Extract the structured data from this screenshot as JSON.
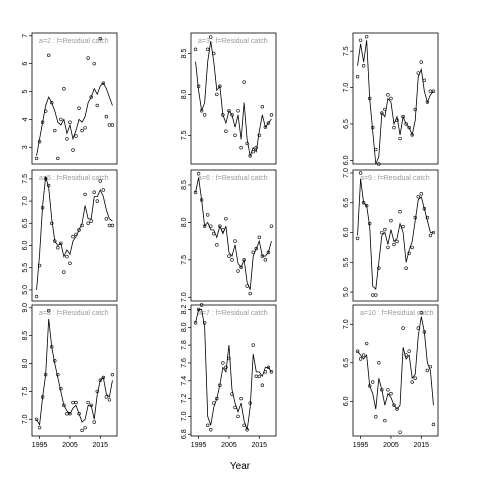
{
  "chart_data": {
    "type": "scatter",
    "x_label": "Year",
    "x": [
      1994,
      1995,
      1996,
      1997,
      1998,
      1999,
      2000,
      2001,
      2002,
      2003,
      2004,
      2005,
      2006,
      2007,
      2008,
      2009,
      2010,
      2011,
      2012,
      2013,
      2014,
      2015,
      2016,
      2017,
      2018,
      2019
    ],
    "xlim": [
      1992.5,
      2020.5
    ],
    "xticks": [
      1995,
      2005,
      2015
    ],
    "point_color": "#000000",
    "line_color": "#000000",
    "title_color": "#999999",
    "panels": [
      {
        "title": "a=2  :  f=Residual catch",
        "ylim": [
          2.4,
          7.1
        ],
        "yticks": [
          3,
          4,
          5,
          6,
          7
        ],
        "values": [
          2.6,
          3.2,
          3.9,
          4.3,
          6.3,
          4.6,
          3.6,
          2.6,
          4.0,
          5.1,
          3.3,
          3.9,
          2.9,
          3.4,
          4.4,
          3.6,
          3.7,
          6.2,
          4.8,
          6.0,
          4.5,
          6.9,
          5.3,
          4.1,
          3.8,
          3.8
        ],
        "fit": [
          2.7,
          3.3,
          3.9,
          4.5,
          4.8,
          4.6,
          4.3,
          3.9,
          3.8,
          4.0,
          3.5,
          3.8,
          3.3,
          3.6,
          4.0,
          3.9,
          4.1,
          4.6,
          4.8,
          5.1,
          4.9,
          5.2,
          5.3,
          5.1,
          4.8,
          4.5
        ]
      },
      {
        "title": "a=3  :  f=Residual catch",
        "ylim": [
          7.15,
          8.75
        ],
        "yticks": [
          7.5,
          {
            "value": 8,
            "label": "8.0"
          },
          8.5
        ],
        "values": [
          8.55,
          8.1,
          7.8,
          7.75,
          8.55,
          8.7,
          8.5,
          8.0,
          8.1,
          7.75,
          7.55,
          7.8,
          7.75,
          7.5,
          7.8,
          7.35,
          8.15,
          7.4,
          7.25,
          7.3,
          7.35,
          7.5,
          7.85,
          7.6,
          7.65,
          7.75
        ],
        "fit": [
          8.4,
          8.05,
          7.8,
          7.9,
          8.4,
          8.65,
          8.4,
          8.05,
          8.1,
          7.75,
          7.65,
          7.8,
          7.75,
          7.6,
          7.75,
          7.45,
          7.9,
          7.45,
          7.25,
          7.35,
          7.3,
          7.55,
          7.75,
          7.6,
          7.65,
          7.7
        ]
      },
      {
        "ylim": [
          5.95,
          7.75
        ],
        "yticks": [
          {
            "value": 6,
            "label": "6.0"
          },
          6.5,
          {
            "value": 7,
            "label": "7.0"
          },
          7.5
        ],
        "values": [
          7.15,
          7.65,
          7.3,
          7.7,
          6.85,
          6.45,
          6.15,
          5.95,
          6.65,
          6.7,
          6.9,
          6.85,
          6.45,
          6.55,
          6.3,
          6.6,
          6.5,
          6.45,
          6.35,
          6.7,
          7.2,
          7.35,
          7.1,
          6.8,
          6.95,
          6.95
        ],
        "fit": [
          7.3,
          7.6,
          7.35,
          7.65,
          6.85,
          6.4,
          5.95,
          6.05,
          6.65,
          6.6,
          6.85,
          6.8,
          6.5,
          6.6,
          6.35,
          6.6,
          6.5,
          6.45,
          6.35,
          6.55,
          7.15,
          7.25,
          6.95,
          6.8,
          6.9,
          6.95
        ]
      },
      {
        "title": "a=5  :  f=Residual catch",
        "ylim": [
          4.75,
          7.7
        ],
        "yticks": [
          {
            "value": 5,
            "label": "5.0"
          },
          5.5,
          {
            "value": 6,
            "label": "6.0"
          },
          6.5,
          {
            "value": 7,
            "label": "7.0"
          },
          7.5
        ],
        "values": [
          4.85,
          5.55,
          6.85,
          7.5,
          7.35,
          6.5,
          6.1,
          5.95,
          6.05,
          5.4,
          5.75,
          5.6,
          6.2,
          6.25,
          6.35,
          6.45,
          7.15,
          6.5,
          6.55,
          7.2,
          7.0,
          7.45,
          7.25,
          6.6,
          6.45,
          6.45
        ],
        "fit": [
          5.0,
          5.8,
          6.9,
          7.55,
          7.3,
          6.6,
          6.1,
          6.0,
          6.05,
          5.75,
          5.9,
          5.8,
          6.1,
          6.2,
          6.35,
          6.5,
          6.9,
          6.6,
          6.6,
          7.1,
          7.1,
          7.25,
          7.1,
          6.8,
          6.6,
          6.55
        ]
      },
      {
        "title": "a=6  :  f=Residual catch",
        "ylim": [
          6.95,
          8.7
        ],
        "yticks": [
          {
            "value": 7,
            "label": "7.0"
          },
          7.5,
          {
            "value": 8,
            "label": "8.0"
          },
          8.5
        ],
        "values": [
          8.4,
          8.65,
          8.3,
          7.95,
          8.1,
          7.95,
          7.85,
          7.7,
          7.95,
          7.9,
          8.05,
          7.55,
          7.5,
          7.75,
          7.35,
          7.4,
          7.5,
          7.15,
          7.05,
          7.6,
          7.65,
          7.8,
          7.55,
          7.5,
          7.6,
          7.95
        ],
        "fit": [
          8.4,
          8.6,
          8.3,
          7.95,
          8.0,
          7.9,
          7.9,
          7.8,
          7.95,
          7.85,
          7.95,
          7.6,
          7.55,
          7.7,
          7.45,
          7.4,
          7.5,
          7.2,
          7.1,
          7.55,
          7.65,
          7.75,
          7.55,
          7.55,
          7.6,
          7.75
        ]
      },
      {
        "title": "a=9  :  f=Residual catch",
        "ylim": [
          4.85,
          7.05
        ],
        "yticks": [
          {
            "value": 5,
            "label": "5.0"
          },
          5.5,
          {
            "value": 6,
            "label": "6.0"
          },
          6.5,
          {
            "value": 7,
            "label": "7.0"
          }
        ],
        "values": [
          5.9,
          7.0,
          6.5,
          6.45,
          6.15,
          4.95,
          4.95,
          5.4,
          6.0,
          6.05,
          5.75,
          6.2,
          5.8,
          5.85,
          6.35,
          6.1,
          5.4,
          5.65,
          5.75,
          6.25,
          6.6,
          6.65,
          6.4,
          6.25,
          5.95,
          6.0
        ],
        "fit": [
          5.95,
          6.9,
          6.5,
          6.45,
          6.1,
          5.1,
          5.05,
          5.5,
          5.95,
          6.0,
          5.8,
          6.05,
          5.85,
          5.9,
          6.15,
          6.0,
          5.5,
          5.7,
          5.85,
          6.2,
          6.55,
          6.6,
          6.4,
          6.2,
          6.0,
          6.0
        ]
      },
      {
        "title": "a=8  :  f=Residual catch",
        "ylim": [
          6.7,
          9.05
        ],
        "yticks": [
          {
            "value": 7,
            "label": "7.0"
          },
          7.5,
          {
            "value": 8,
            "label": "8.0"
          },
          8.5,
          {
            "value": 9,
            "label": "9.0"
          }
        ],
        "values": [
          7.0,
          6.85,
          7.4,
          7.8,
          8.95,
          8.3,
          8.05,
          7.8,
          7.55,
          7.25,
          7.1,
          7.1,
          7.3,
          7.3,
          7.1,
          6.8,
          6.85,
          7.3,
          7.25,
          6.95,
          7.5,
          7.7,
          7.75,
          7.4,
          7.35,
          7.8
        ],
        "fit": [
          7.0,
          6.9,
          7.4,
          7.8,
          8.8,
          8.3,
          8.0,
          7.75,
          7.5,
          7.25,
          7.15,
          7.1,
          7.2,
          7.25,
          7.1,
          6.95,
          7.0,
          7.25,
          7.25,
          7.0,
          7.45,
          7.7,
          7.75,
          7.45,
          7.4,
          7.7
        ]
      },
      {
        "title": "a=7  :  f=Residual catch",
        "ylim": [
          6.78,
          8.25
        ],
        "yticks": [
          6.8,
          {
            "value": 7,
            "label": "7.0"
          },
          7.2,
          7.4,
          7.6,
          7.8,
          {
            "value": 8,
            "label": "8.0"
          },
          8.2
        ],
        "values": [
          8.05,
          8.2,
          8.25,
          8.05,
          6.9,
          6.85,
          7.15,
          7.2,
          7.35,
          7.6,
          7.55,
          7.65,
          7.25,
          7.1,
          7.0,
          7.2,
          6.9,
          6.85,
          7.15,
          7.8,
          7.45,
          7.45,
          7.35,
          7.5,
          7.55,
          7.5
        ],
        "fit": [
          8.05,
          8.2,
          8.2,
          8.0,
          7.0,
          6.9,
          7.1,
          7.2,
          7.35,
          7.55,
          7.5,
          7.8,
          7.3,
          7.15,
          7.05,
          7.15,
          6.95,
          6.85,
          7.1,
          7.7,
          7.5,
          7.5,
          7.45,
          7.55,
          7.55,
          7.5
        ]
      },
      {
        "title": "a=10  :  f=Residual catch",
        "ylim": [
          5.55,
          7.25
        ],
        "yticks": [
          {
            "value": 6,
            "label": "6.0"
          },
          6.5,
          {
            "value": 7,
            "label": "7.0"
          }
        ],
        "values": [
          6.65,
          6.55,
          6.6,
          6.75,
          6.2,
          6.25,
          5.8,
          6.5,
          6.15,
          5.75,
          6.15,
          6.1,
          5.95,
          5.9,
          5.6,
          6.95,
          6.6,
          6.65,
          6.25,
          6.3,
          6.95,
          7.15,
          6.9,
          6.4,
          6.45,
          5.7
        ],
        "fit": [
          6.65,
          6.6,
          6.55,
          6.6,
          6.2,
          6.1,
          5.9,
          6.3,
          6.15,
          5.95,
          6.1,
          6.05,
          5.95,
          5.9,
          5.95,
          6.7,
          6.55,
          6.6,
          6.3,
          6.35,
          6.85,
          7.1,
          6.9,
          6.5,
          6.4,
          5.95
        ]
      }
    ]
  }
}
